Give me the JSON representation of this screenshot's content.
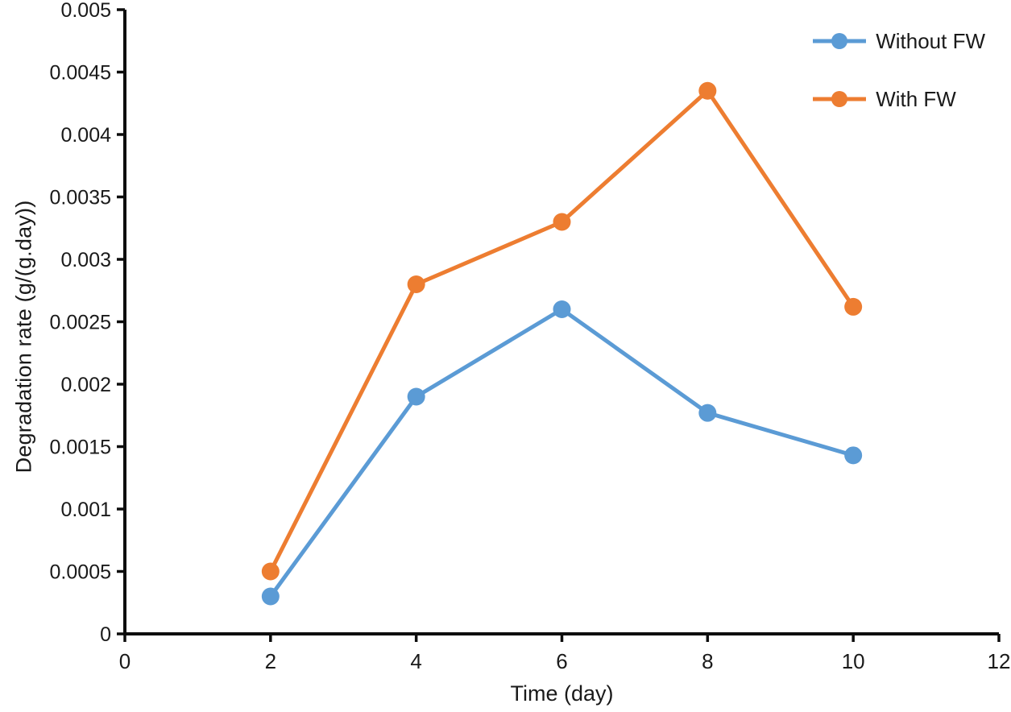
{
  "figure": {
    "background": "#ffffff",
    "text_color": "#1a1a1a",
    "axis_color": "#0d0d0d"
  },
  "legend": {
    "position": "top-right",
    "entries": [
      {
        "label": "Without FW",
        "color": "#5B9BD5",
        "marker": "circle-on-line"
      },
      {
        "label": "With FW",
        "color": "#ED7D31",
        "marker": "circle-on-line"
      }
    ]
  },
  "chart_data": {
    "type": "line",
    "title": "",
    "xlabel": "Time (day)",
    "ylabel": "Degradation rate (g/(g.day))",
    "x": [
      2,
      4,
      6,
      8,
      10
    ],
    "series": [
      {
        "name": "Without FW",
        "color": "#5B9BD5",
        "values": [
          0.0003,
          0.0019,
          0.0026,
          0.00177,
          0.00143
        ]
      },
      {
        "name": "With FW",
        "color": "#ED7D31",
        "values": [
          0.0005,
          0.0028,
          0.0033,
          0.00435,
          0.00262
        ]
      }
    ],
    "xlim": [
      0,
      12
    ],
    "ylim": [
      0,
      0.005
    ],
    "x_ticks": [
      0,
      2,
      4,
      6,
      8,
      10,
      12
    ],
    "x_tick_labels": [
      "0",
      "2",
      "4",
      "6",
      "8",
      "10",
      "12"
    ],
    "y_ticks": [
      0,
      0.0005,
      0.001,
      0.0015,
      0.002,
      0.0025,
      0.003,
      0.0035,
      0.004,
      0.0045,
      0.005
    ],
    "y_tick_labels": [
      "0",
      "0.0005",
      "0.001",
      "0.0015",
      "0.002",
      "0.0025",
      "0.003",
      "0.0035",
      "0.004",
      "0.0045",
      "0.005"
    ],
    "grid": false,
    "marker": "circle",
    "marker_radius": 11,
    "line_width": 5,
    "legend_position": "top-right"
  }
}
